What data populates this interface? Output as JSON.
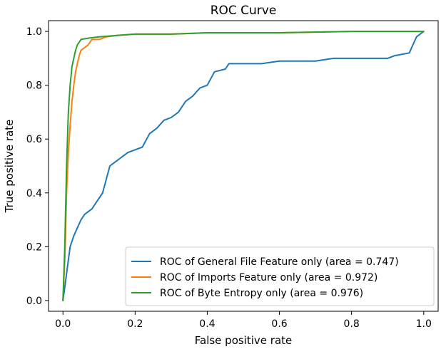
{
  "chart_data": {
    "type": "line",
    "title": "ROC Curve",
    "xlabel": "False positive rate",
    "ylabel": "True positive rate",
    "xlim": [
      -0.04,
      1.04
    ],
    "ylim": [
      -0.04,
      1.04
    ],
    "x_ticks": [
      0.0,
      0.2,
      0.4,
      0.6,
      0.8,
      1.0
    ],
    "x_tick_labels": [
      "0.0",
      "0.2",
      "0.4",
      "0.6",
      "0.8",
      "1.0"
    ],
    "y_ticks": [
      0.0,
      0.2,
      0.4,
      0.6,
      0.8,
      1.0
    ],
    "y_tick_labels": [
      "0.0",
      "0.2",
      "0.4",
      "0.6",
      "0.8",
      "1.0"
    ],
    "grid": false,
    "legend_position": "lower-right",
    "series": [
      {
        "name": "ROC of General File Feature only (area = 0.747)",
        "color": "#1f77b4",
        "x": [
          0.0,
          0.005,
          0.01,
          0.015,
          0.02,
          0.03,
          0.04,
          0.05,
          0.06,
          0.07,
          0.08,
          0.09,
          0.1,
          0.11,
          0.12,
          0.13,
          0.14,
          0.15,
          0.16,
          0.18,
          0.2,
          0.22,
          0.24,
          0.26,
          0.28,
          0.3,
          0.32,
          0.34,
          0.36,
          0.38,
          0.4,
          0.42,
          0.45,
          0.46,
          0.5,
          0.55,
          0.6,
          0.65,
          0.7,
          0.75,
          0.8,
          0.85,
          0.9,
          0.92,
          0.96,
          0.97,
          0.98,
          0.99,
          1.0
        ],
        "y": [
          0.0,
          0.05,
          0.1,
          0.15,
          0.2,
          0.24,
          0.27,
          0.3,
          0.32,
          0.33,
          0.34,
          0.36,
          0.38,
          0.4,
          0.45,
          0.5,
          0.51,
          0.52,
          0.53,
          0.55,
          0.56,
          0.57,
          0.62,
          0.64,
          0.67,
          0.68,
          0.7,
          0.74,
          0.76,
          0.79,
          0.8,
          0.85,
          0.86,
          0.88,
          0.88,
          0.88,
          0.89,
          0.89,
          0.89,
          0.9,
          0.9,
          0.9,
          0.9,
          0.91,
          0.92,
          0.95,
          0.98,
          0.99,
          1.0
        ]
      },
      {
        "name": "ROC of Imports Feature only (area = 0.972)",
        "color": "#ff7f0e",
        "x": [
          0.0,
          0.005,
          0.01,
          0.015,
          0.02,
          0.025,
          0.03,
          0.035,
          0.04,
          0.045,
          0.05,
          0.06,
          0.07,
          0.08,
          0.1,
          0.12,
          0.15,
          0.2,
          0.3,
          0.4,
          0.6,
          0.8,
          1.0
        ],
        "y": [
          0.0,
          0.15,
          0.4,
          0.55,
          0.65,
          0.74,
          0.8,
          0.85,
          0.88,
          0.91,
          0.93,
          0.94,
          0.95,
          0.97,
          0.97,
          0.98,
          0.985,
          0.99,
          0.99,
          0.995,
          0.995,
          1.0,
          1.0
        ]
      },
      {
        "name": "ROC of Byte Entropy only (area = 0.976)",
        "color": "#2ca02c",
        "x": [
          0.0,
          0.005,
          0.01,
          0.015,
          0.02,
          0.025,
          0.03,
          0.035,
          0.04,
          0.045,
          0.05,
          0.07,
          0.1,
          0.15,
          0.2,
          0.3,
          0.4,
          0.6,
          0.8,
          1.0
        ],
        "y": [
          0.0,
          0.2,
          0.5,
          0.7,
          0.8,
          0.87,
          0.9,
          0.93,
          0.95,
          0.96,
          0.97,
          0.975,
          0.98,
          0.985,
          0.99,
          0.99,
          0.995,
          0.995,
          1.0,
          1.0
        ]
      }
    ]
  }
}
